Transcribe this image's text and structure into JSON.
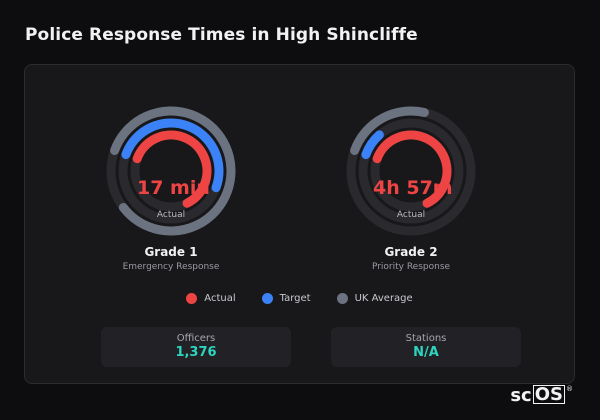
{
  "title": "Police Response Times in High Shincliffe",
  "colors": {
    "actual": "#ef4444",
    "target": "#3b82f6",
    "uk_average": "#6b7280",
    "track": "#2a2a2e",
    "accent_value": "#2dd4bf"
  },
  "gauges": [
    {
      "value_text": "17 min",
      "sub_label": "Actual",
      "title": "Grade 1",
      "description": "Emergency Response",
      "fill": {
        "actual": 0.62,
        "target": 0.5,
        "uk_average": 0.84
      }
    },
    {
      "value_text": "4h 57m",
      "sub_label": "Actual",
      "title": "Grade 2",
      "description": "Priority Response",
      "fill": {
        "actual": 0.62,
        "target": 0.08,
        "uk_average": 0.23
      }
    }
  ],
  "legend": [
    {
      "label": "Actual",
      "color_key": "actual"
    },
    {
      "label": "Target",
      "color_key": "target"
    },
    {
      "label": "UK Average",
      "color_key": "uk_average"
    }
  ],
  "stats": [
    {
      "label": "Officers",
      "value": "1,376"
    },
    {
      "label": "Stations",
      "value": "N/A"
    }
  ],
  "logo": {
    "text_plain": "sc",
    "text_boxed": "OS",
    "reg": "®"
  }
}
